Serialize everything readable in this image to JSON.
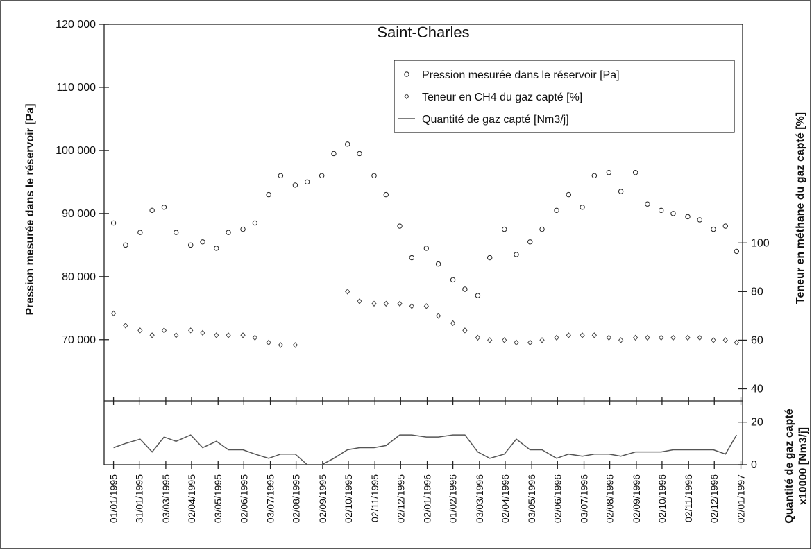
{
  "chart_data": [
    {
      "type": "scatter",
      "title": "Saint-Charles",
      "legend": "upper right",
      "ylabel": "Pression mesurée dans le réservoir [Pa]",
      "y2label": "Teneur en méthane du gaz capté [%]",
      "xlim": [
        "1994-12-21",
        "1997-01-04"
      ],
      "ylim": [
        60300,
        120000
      ],
      "yticks": [
        {
          "value": 70000,
          "label": "70 000"
        },
        {
          "value": 80000,
          "label": "80 000"
        },
        {
          "value": 90000,
          "label": "90 000"
        },
        {
          "value": 100000,
          "label": "100 000"
        },
        {
          "value": 110000,
          "label": "110 000"
        },
        {
          "value": 120000,
          "label": "120 000"
        }
      ],
      "y2lim": [
        35,
        190
      ],
      "y2ticks": [
        40,
        60,
        80,
        100
      ],
      "x": [
        "1995-01-01",
        "1995-01-15",
        "1995-02-01",
        "1995-02-15",
        "1995-03-01",
        "1995-03-15",
        "1995-04-01",
        "1995-04-15",
        "1995-05-01",
        "1995-05-15",
        "1995-06-01",
        "1995-06-15",
        "1995-07-01",
        "1995-07-15",
        "1995-08-01",
        "1995-08-15",
        "1995-09-01",
        "1995-09-15",
        "1995-10-01",
        "1995-10-15",
        "1995-11-01",
        "1995-11-15",
        "1995-12-01",
        "1995-12-15",
        "1996-01-01",
        "1996-01-15",
        "1996-02-01",
        "1996-02-15",
        "1996-03-01",
        "1996-03-15",
        "1996-04-01",
        "1996-04-15",
        "1996-05-01",
        "1996-05-15",
        "1996-06-01",
        "1996-06-15",
        "1996-07-01",
        "1996-07-15",
        "1996-08-01",
        "1996-08-15",
        "1996-09-01",
        "1996-09-15",
        "1996-10-01",
        "1996-10-15",
        "1996-11-01",
        "1996-11-15",
        "1996-12-01",
        "1996-12-15",
        "1996-12-28"
      ],
      "series": [
        {
          "name": "Pression mesurée dans le réservoir [Pa]",
          "color": "#222222",
          "marker": "circle",
          "values": [
            88500,
            85000,
            87000,
            90500,
            91000,
            87000,
            85000,
            85500,
            84500,
            87000,
            87500,
            88500,
            93000,
            96000,
            94500,
            95000,
            96000,
            99500,
            101000,
            99500,
            96000,
            93000,
            88000,
            83000,
            84500,
            82000,
            79500,
            78000,
            77000,
            83000,
            87500,
            83500,
            85500,
            87500,
            90500,
            93000,
            91000,
            96000,
            96500,
            93500,
            96500,
            91500,
            90500,
            90000,
            89500,
            89000,
            87500,
            88000,
            84000
          ]
        },
        {
          "name": "Teneur en CH4 du gaz capté [%]",
          "color": "#444444",
          "marker": "diamond",
          "axis": "y2",
          "values": [
            71,
            66,
            64,
            62,
            64,
            62,
            64,
            63,
            62,
            62,
            62,
            61,
            59,
            58,
            58,
            null,
            null,
            null,
            80,
            76,
            75,
            75,
            75,
            74,
            74,
            70,
            67,
            64,
            61,
            60,
            60,
            59,
            59,
            60,
            61,
            62,
            62,
            62,
            61,
            60,
            61,
            61,
            61,
            61,
            61,
            61,
            60,
            60,
            59
          ]
        }
      ]
    },
    {
      "type": "line",
      "ylabel": [
        "Quantité de gaz capté",
        "x10000 [Nm3/j]"
      ],
      "xlim": [
        "1994-12-21",
        "1997-01-04"
      ],
      "ylim": [
        0,
        30
      ],
      "yticks": [
        0,
        20
      ],
      "xticks": [
        {
          "value": "1995-01-01",
          "label": "01/01/1995"
        },
        {
          "value": "1995-01-31",
          "label": "31/01/1995"
        },
        {
          "value": "1995-03-03",
          "label": "03/03/1995"
        },
        {
          "value": "1995-04-02",
          "label": "02/04/1995"
        },
        {
          "value": "1995-05-03",
          "label": "03/05/1995"
        },
        {
          "value": "1995-06-02",
          "label": "02/06/1995"
        },
        {
          "value": "1995-07-03",
          "label": "03/07/1995"
        },
        {
          "value": "1995-08-02",
          "label": "02/08/1995"
        },
        {
          "value": "1995-09-02",
          "label": "02/09/1995"
        },
        {
          "value": "1995-10-02",
          "label": "02/10/1995"
        },
        {
          "value": "1995-11-02",
          "label": "02/11/1995"
        },
        {
          "value": "1995-12-02",
          "label": "02/12/1995"
        },
        {
          "value": "1996-01-02",
          "label": "02/01/1996"
        },
        {
          "value": "1996-02-01",
          "label": "01/02/1996"
        },
        {
          "value": "1996-03-03",
          "label": "03/03/1996"
        },
        {
          "value": "1996-04-02",
          "label": "02/04/1996"
        },
        {
          "value": "1996-05-03",
          "label": "03/05/1996"
        },
        {
          "value": "1996-06-02",
          "label": "02/06/1996"
        },
        {
          "value": "1996-07-03",
          "label": "03/07/1996"
        },
        {
          "value": "1996-08-02",
          "label": "02/08/1996"
        },
        {
          "value": "1996-09-02",
          "label": "02/09/1996"
        },
        {
          "value": "1996-10-02",
          "label": "02/10/1996"
        },
        {
          "value": "1996-11-02",
          "label": "02/11/1996"
        },
        {
          "value": "1996-12-02",
          "label": "02/12/1996"
        },
        {
          "value": "1997-01-02",
          "label": "02/01/1997"
        }
      ],
      "x": [
        "1995-01-01",
        "1995-01-15",
        "1995-02-01",
        "1995-02-15",
        "1995-03-01",
        "1995-03-15",
        "1995-04-01",
        "1995-04-15",
        "1995-05-01",
        "1995-05-15",
        "1995-06-01",
        "1995-06-15",
        "1995-07-01",
        "1995-07-15",
        "1995-08-01",
        "1995-08-15",
        "1995-09-01",
        "1995-09-15",
        "1995-10-01",
        "1995-10-15",
        "1995-11-01",
        "1995-11-15",
        "1995-12-01",
        "1995-12-15",
        "1996-01-01",
        "1996-01-15",
        "1996-02-01",
        "1996-02-15",
        "1996-03-01",
        "1996-03-15",
        "1996-04-01",
        "1996-04-15",
        "1996-05-01",
        "1996-05-15",
        "1996-06-01",
        "1996-06-15",
        "1996-07-01",
        "1996-07-15",
        "1996-08-01",
        "1996-08-15",
        "1996-09-01",
        "1996-09-15",
        "1996-10-01",
        "1996-10-15",
        "1996-11-01",
        "1996-11-15",
        "1996-12-01",
        "1996-12-15",
        "1996-12-28"
      ],
      "series": [
        {
          "name": "Quantité de gaz capté [Nm3/j]",
          "color": "#555555",
          "values": [
            8,
            10,
            12,
            6,
            13,
            11,
            14,
            8,
            11,
            7,
            7,
            5,
            3,
            5,
            5,
            0,
            0,
            3,
            7,
            8,
            8,
            9,
            14,
            14,
            13,
            13,
            14,
            14,
            6,
            3,
            5,
            12,
            7,
            7,
            3,
            5,
            4,
            5,
            5,
            4,
            6,
            6,
            6,
            7,
            7,
            7,
            7,
            5,
            14
          ]
        }
      ]
    }
  ]
}
